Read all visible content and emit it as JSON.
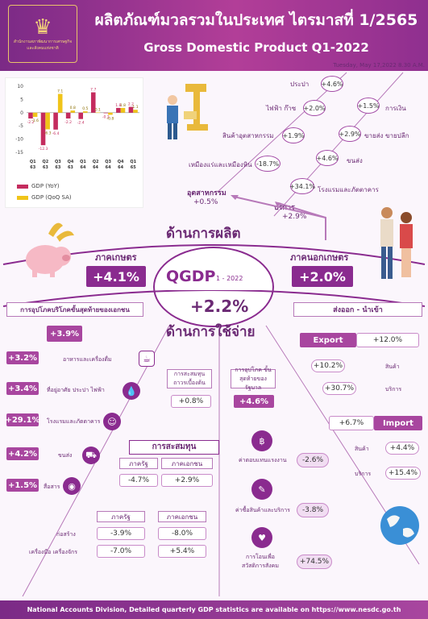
{
  "header": {
    "title_th": "ผลิตภัณฑ์มวลรวมในประเทศ ไตรมาสที่ 1/2565",
    "title_en": "Gross Domestic Product Q1-2022",
    "date": "Tuesday, May 17,2022 8.30 A.M.",
    "logo_text": "สำนักงานสภาพัฒนาการเศรษฐกิจและสังคมแห่งชาติ"
  },
  "chart_data": {
    "type": "bar",
    "categories": [
      "Q1 63",
      "Q2 63",
      "Q3 63",
      "Q4 63",
      "Q1 64",
      "Q2 64",
      "Q3 64",
      "Q4 64",
      "Q1 65"
    ],
    "category_top": [
      "Q1",
      "Q2",
      "Q3",
      "Q4",
      "Q1",
      "Q2",
      "Q3",
      "Q4",
      "Q1"
    ],
    "category_bottom": [
      "63",
      "63",
      "63",
      "63",
      "64",
      "64",
      "64",
      "64",
      "65"
    ],
    "series": [
      {
        "name": "GDP (YoY)",
        "values": [
          -2.2,
          -12.3,
          -6.4,
          -2.2,
          -2.4,
          7.7,
          -0.2,
          1.8,
          2.2
        ],
        "color": "#c42c5e"
      },
      {
        "name": "GDP (QoQ SA)",
        "values": [
          -1.6,
          -6.3,
          7.1,
          0.8,
          0.5,
          0.1,
          -0.8,
          1.8,
          1.1
        ],
        "color": "#f0c419"
      }
    ],
    "ylim": [
      -15,
      10
    ],
    "yticks": [
      10,
      5,
      0,
      -5,
      -10,
      -15
    ],
    "labels_yoy": [
      "-2.2",
      "-12.3",
      "-6.4",
      "-2.2",
      "-2.4",
      "7.7",
      "-0.2",
      "1.8",
      "2.2"
    ],
    "labels_qoq": [
      "-1.6",
      "-6.3",
      "7.1",
      "0.8",
      "0.5",
      "0.1",
      "-0.8",
      "1.8",
      "1.1"
    ]
  },
  "production": {
    "title": "ด้านการผลิต",
    "agriculture_label": "ภาคเกษตร",
    "agriculture_value": "+4.1%",
    "nonag_label": "ภาคนอกเกษตร",
    "nonag_value": "+2.0%",
    "industry_label": "อุตสาหกรรม",
    "industry_value": "+0.5%",
    "services_label": "บริการ",
    "services_value": "+2.9%",
    "sectors": [
      {
        "label": "ประปา",
        "value": "+4.6%"
      },
      {
        "label": "ไฟฟ้า ก๊าซ",
        "value": "+2.0%"
      },
      {
        "label": "การเงิน",
        "value": "+1.5%"
      },
      {
        "label": "สินค้าอุตสาหกรรม",
        "value": "+1.9%"
      },
      {
        "label": "ขายส่ง ขายปลีก",
        "value": "+2.9%"
      },
      {
        "label": "เหมืองแร่และเหมืองหิน",
        "value": "-18.7%"
      },
      {
        "label": "ขนส่ง",
        "value": "+4.6%"
      },
      {
        "label": "โรงแรมและภัตตาคาร",
        "value": "+34.1%"
      }
    ]
  },
  "qgdp": {
    "label": "QGDP",
    "period": "1 - 2022",
    "value": "+2.2%"
  },
  "expenditure": {
    "title": "ด้านการใช้จ่าย",
    "private_cons_label": "การอุปโภคบริโภคขั้นสุดท้ายของเอกชน",
    "private_cons_value": "+3.9%",
    "private_items": [
      {
        "value": "+3.2%",
        "label": "อาหารและเครื่องดื่ม"
      },
      {
        "value": "+3.4%",
        "label": "ที่อยู่อาศัย ประปา ไฟฟ้า"
      },
      {
        "value": "+29.1%",
        "label": "โรงแรมและภัตตาคาร"
      },
      {
        "value": "+4.2%",
        "label": "ขนส่ง"
      },
      {
        "value": "+1.5%",
        "label": "สื่อสาร"
      }
    ],
    "investment_label": "การสะสมทุน ถาวรเบื้องต้น",
    "investment_value": "+0.8%",
    "gov_label": "การอุปโภค ขั้นสุดท้ายของรัฐบาล",
    "gov_value": "+4.6%",
    "capital": {
      "title": "การสะสมทุน",
      "public": "ภาครัฐ",
      "private": "ภาคเอกชน",
      "public_value": "-4.7%",
      "private_value": "+2.9%"
    },
    "capital_detail": {
      "public": "ภาครัฐ",
      "private": "ภาคเอกชน",
      "rows": [
        {
          "label": "ก่อสร้าง",
          "public": "-3.9%",
          "private": "-8.0%"
        },
        {
          "label": "เครื่องมือ เครื่องจักร",
          "public": "-7.0%",
          "private": "+5.4%"
        }
      ]
    },
    "gov_items": [
      {
        "label": "ค่าตอบแทนแรงงาน",
        "value": "-2.6%"
      },
      {
        "label": "ค่าซื้อสินค้าและบริการ",
        "value": "-3.8%"
      },
      {
        "label": "การโอนเพื่อ สวัสดิการสังคม",
        "value": "+74.5%"
      }
    ]
  },
  "trade": {
    "title": "ส่งออก - นำเข้า",
    "export_label": "Export",
    "export_value": "+12.0%",
    "export_goods_label": "สินค้า",
    "export_goods": "+10.2%",
    "export_services_label": "บริการ",
    "export_services": "+30.7%",
    "import_label": "Import",
    "import_value": "+6.7%",
    "import_goods_label": "สินค้า",
    "import_goods": "+4.4%",
    "import_services_label": "บริการ",
    "import_services": "+15.4%"
  },
  "footer": {
    "text": "National Accounts Division, Detailed quarterly GDP statistics are available on https://www.nesdc.go.th"
  }
}
